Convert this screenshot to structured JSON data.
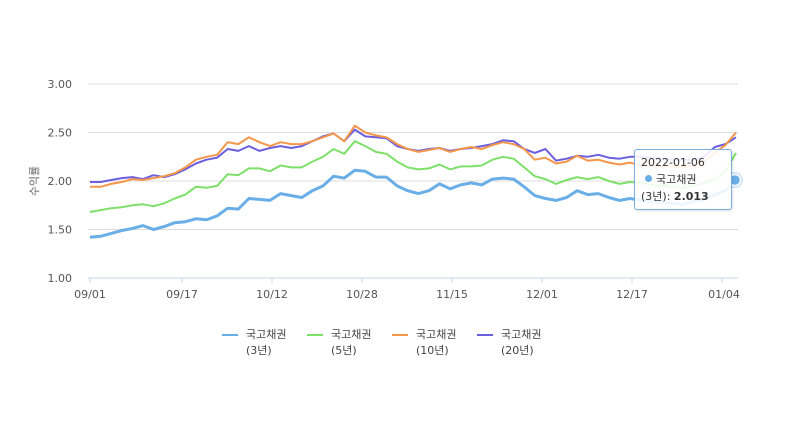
{
  "chart_data": {
    "type": "line",
    "title": "",
    "xlabel": "",
    "ylabel": "수익률",
    "ylim": [
      1.0,
      3.0
    ],
    "yticks": [
      "1.00",
      "1.50",
      "2.00",
      "2.50",
      "3.00"
    ],
    "xticks": [
      "09/01",
      "09/17",
      "10/12",
      "10/28",
      "11/15",
      "12/01",
      "12/17",
      "01/04"
    ],
    "grid": "horizontal",
    "legend_position": "bottom",
    "series": [
      {
        "name": "국고채권 (3년)",
        "color": "#6aaee8",
        "values": [
          1.42,
          1.43,
          1.46,
          1.49,
          1.51,
          1.54,
          1.5,
          1.53,
          1.57,
          1.58,
          1.61,
          1.6,
          1.64,
          1.72,
          1.71,
          1.82,
          1.81,
          1.8,
          1.87,
          1.85,
          1.83,
          1.9,
          1.95,
          2.05,
          2.03,
          2.11,
          2.1,
          2.04,
          2.04,
          1.95,
          1.9,
          1.87,
          1.9,
          1.97,
          1.92,
          1.96,
          1.98,
          1.96,
          2.02,
          2.03,
          2.02,
          1.94,
          1.85,
          1.82,
          1.8,
          1.83,
          1.9,
          1.86,
          1.87,
          1.83,
          1.8,
          1.82,
          1.8,
          1.79,
          1.78,
          1.77,
          1.76,
          1.79,
          1.81,
          1.86,
          1.9,
          2.01
        ]
      },
      {
        "name": "국고채권 (5년)",
        "color": "#7ee06a",
        "values": [
          1.68,
          1.7,
          1.72,
          1.73,
          1.75,
          1.76,
          1.74,
          1.77,
          1.82,
          1.86,
          1.94,
          1.93,
          1.95,
          2.07,
          2.06,
          2.13,
          2.13,
          2.1,
          2.16,
          2.14,
          2.14,
          2.2,
          2.25,
          2.33,
          2.28,
          2.41,
          2.36,
          2.3,
          2.28,
          2.2,
          2.14,
          2.12,
          2.13,
          2.17,
          2.12,
          2.15,
          2.15,
          2.16,
          2.22,
          2.25,
          2.23,
          2.14,
          2.05,
          2.02,
          1.97,
          2.01,
          2.04,
          2.02,
          2.04,
          2.0,
          1.97,
          1.99,
          1.98,
          1.96,
          1.95,
          1.94,
          1.93,
          1.95,
          1.98,
          2.02,
          2.1,
          2.29
        ]
      },
      {
        "name": "국고채권 (10년)",
        "color": "#f5974a",
        "values": [
          1.94,
          1.94,
          1.97,
          1.99,
          2.02,
          2.01,
          2.03,
          2.05,
          2.08,
          2.14,
          2.22,
          2.25,
          2.27,
          2.4,
          2.38,
          2.45,
          2.4,
          2.36,
          2.4,
          2.38,
          2.38,
          2.41,
          2.45,
          2.49,
          2.41,
          2.57,
          2.5,
          2.47,
          2.45,
          2.38,
          2.33,
          2.3,
          2.32,
          2.34,
          2.3,
          2.33,
          2.35,
          2.33,
          2.37,
          2.4,
          2.38,
          2.33,
          2.22,
          2.24,
          2.18,
          2.2,
          2.26,
          2.21,
          2.22,
          2.19,
          2.17,
          2.19,
          2.16,
          2.16,
          2.15,
          2.15,
          2.14,
          2.16,
          2.2,
          2.29,
          2.37,
          2.5
        ]
      },
      {
        "name": "국고채권 (20년)",
        "color": "#6b5fe0",
        "values": [
          1.99,
          1.99,
          2.01,
          2.03,
          2.04,
          2.02,
          2.06,
          2.04,
          2.07,
          2.12,
          2.18,
          2.22,
          2.24,
          2.33,
          2.31,
          2.36,
          2.31,
          2.34,
          2.36,
          2.34,
          2.36,
          2.41,
          2.46,
          2.49,
          2.41,
          2.53,
          2.46,
          2.45,
          2.44,
          2.36,
          2.33,
          2.31,
          2.33,
          2.34,
          2.31,
          2.33,
          2.34,
          2.36,
          2.38,
          2.42,
          2.41,
          2.33,
          2.29,
          2.33,
          2.21,
          2.23,
          2.26,
          2.25,
          2.27,
          2.24,
          2.23,
          2.25,
          2.25,
          2.24,
          2.23,
          2.22,
          2.22,
          2.22,
          2.25,
          2.35,
          2.38,
          2.45
        ]
      }
    ]
  },
  "tooltip": {
    "date": "2022-01-06",
    "series_name": "국고채권",
    "series_suffix": "(3년):",
    "value": "2.013",
    "dot_color": "#6aaee8"
  },
  "legend": [
    {
      "line1": "국고채권",
      "line2": "(3년)",
      "color": "#6aaee8"
    },
    {
      "line1": "국고채권",
      "line2": "(5년)",
      "color": "#7ee06a"
    },
    {
      "line1": "국고채권",
      "line2": "(10년)",
      "color": "#f5974a"
    },
    {
      "line1": "국고채권",
      "line2": "(20년)",
      "color": "#6b5fe0"
    }
  ]
}
